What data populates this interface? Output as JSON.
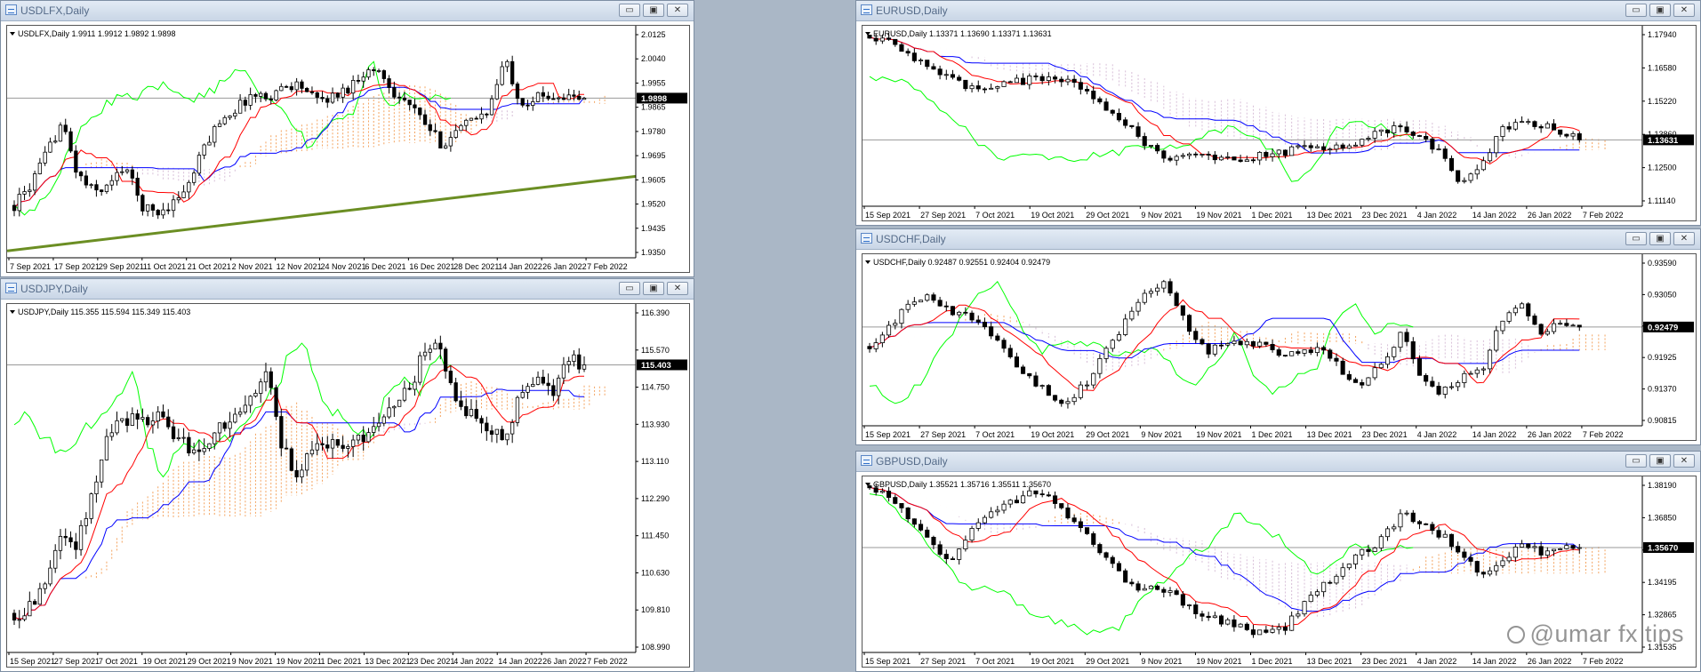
{
  "colors": {
    "candle_up": "#ffffff",
    "candle_down": "#000000",
    "tenkan": "#ff0000",
    "kijun": "#0000ff",
    "chikou": "#00ff00",
    "kumo_bull": "#f4a460",
    "kumo_bear": "#d8bfd8",
    "trendline": "#6b8e23",
    "price_tag_bg": "#000000"
  },
  "window_buttons": {
    "minimize": "▭",
    "restore": "▣",
    "close": "✕"
  },
  "watermark": "@umar fx tips",
  "charts": [
    {
      "id": "usdlfx",
      "title": "USDLFX,Daily",
      "info": "USDLFX,Daily  1.9911 1.9912 1.9892 1.9898",
      "price_tag": "1.9898",
      "y_labels": [
        "2.0125",
        "2.0040",
        "1.9955",
        "1.9865",
        "1.9780",
        "1.9695",
        "1.9605",
        "1.9520",
        "1.9435",
        "1.9350"
      ],
      "x_labels": [
        "7 Sep 2021",
        "17 Sep 2021",
        "29 Sep 2021",
        "11 Oct 2021",
        "21 Oct 2021",
        "2 Nov 2021",
        "12 Nov 2021",
        "24 Nov 2021",
        "6 Dec 2021",
        "16 Dec 2021",
        "28 Dec 2021",
        "14 Jan 2022",
        "26 Jan 2022",
        "7 Feb 2022"
      ],
      "trendline": true,
      "chart_data": {
        "type": "candlestick",
        "ylim": [
          1.932,
          2.016
        ],
        "last_price": 1.9898,
        "anchors": [
          1.951,
          1.958,
          1.969,
          1.981,
          1.962,
          1.956,
          1.958,
          1.966,
          1.951,
          1.948,
          1.952,
          1.958,
          1.972,
          1.982,
          1.986,
          1.991,
          1.99,
          1.994,
          1.995,
          1.989,
          1.99,
          1.993,
          1.999,
          2.0,
          1.992,
          1.987,
          1.98,
          1.973,
          1.978,
          1.982,
          1.986,
          2.004,
          1.988,
          1.99,
          1.991,
          1.99,
          1.9898
        ]
      }
    },
    {
      "id": "usdjpy",
      "title": "USDJPY,Daily",
      "info": "USDJPY,Daily  115.355 115.594 115.349 115.403",
      "price_tag": "115.403",
      "y_labels": [
        "116.390",
        "115.570",
        "114.750",
        "113.930",
        "113.110",
        "112.290",
        "111.450",
        "110.630",
        "109.810",
        "108.990"
      ],
      "x_labels": [
        "15 Sep 2021",
        "27 Sep 2021",
        "7 Oct 2021",
        "19 Oct 2021",
        "29 Oct 2021",
        "9 Nov 2021",
        "19 Nov 2021",
        "1 Dec 2021",
        "13 Dec 2021",
        "23 Dec 2021",
        "4 Jan 2022",
        "14 Jan 2022",
        "26 Jan 2022",
        "7 Feb 2022"
      ],
      "trendline": false,
      "chart_data": {
        "type": "candlestick",
        "ylim": [
          108.8,
          116.8
        ],
        "last_price": 115.403,
        "anchors": [
          109.7,
          109.8,
          110.5,
          111.4,
          111.3,
          112.6,
          113.9,
          114.2,
          114.0,
          114.2,
          113.8,
          113.5,
          113.5,
          114.0,
          114.2,
          114.7,
          115.2,
          113.4,
          112.9,
          113.5,
          113.7,
          113.5,
          113.7,
          114.1,
          114.6,
          114.8,
          115.9,
          115.6,
          114.6,
          114.2,
          114.0,
          113.8,
          114.7,
          115.1,
          114.8,
          115.5,
          115.403
        ]
      }
    },
    {
      "id": "eurusd",
      "title": "EURUSD,Daily",
      "info": "EURUSD,Daily  1.13371 1.13690 1.13371 1.13631",
      "price_tag": "1.13631",
      "y_labels": [
        "1.17940",
        "1.16580",
        "1.15220",
        "1.13860",
        "1.12500",
        "1.11140"
      ],
      "x_labels": [
        "15 Sep 2021",
        "27 Sep 2021",
        "7 Oct 2021",
        "19 Oct 2021",
        "29 Oct 2021",
        "9 Nov 2021",
        "19 Nov 2021",
        "1 Dec 2021",
        "13 Dec 2021",
        "23 Dec 2021",
        "4 Jan 2022",
        "14 Jan 2022",
        "26 Jan 2022",
        "7 Feb 2022"
      ],
      "trendline": false,
      "chart_data": {
        "type": "candlestick",
        "ylim": [
          1.108,
          1.185
        ],
        "last_price": 1.13631,
        "anchors": [
          1.181,
          1.178,
          1.173,
          1.168,
          1.162,
          1.159,
          1.157,
          1.16,
          1.162,
          1.163,
          1.161,
          1.157,
          1.15,
          1.143,
          1.134,
          1.128,
          1.131,
          1.13,
          1.129,
          1.127,
          1.13,
          1.131,
          1.134,
          1.133,
          1.134,
          1.136,
          1.14,
          1.141,
          1.137,
          1.13,
          1.118,
          1.125,
          1.14,
          1.145,
          1.143,
          1.14,
          1.13631
        ]
      }
    },
    {
      "id": "usdchf",
      "title": "USDCHF,Daily",
      "info": "USDCHF,Daily  0.92487 0.92551 0.92404 0.92479",
      "price_tag": "0.92479",
      "y_labels": [
        "0.93590",
        "0.93050",
        "0.92479",
        "0.91925",
        "0.91370",
        "0.90815"
      ],
      "x_labels": [
        "15 Sep 2021",
        "27 Sep 2021",
        "7 Oct 2021",
        "19 Oct 2021",
        "29 Oct 2021",
        "9 Nov 2021",
        "19 Nov 2021",
        "1 Dec 2021",
        "13 Dec 2021",
        "23 Dec 2021",
        "4 Jan 2022",
        "14 Jan 2022",
        "26 Jan 2022",
        "7 Feb 2022"
      ],
      "trendline": false,
      "chart_data": {
        "type": "candlestick",
        "ylim": [
          0.9055,
          0.939
        ],
        "last_price": 0.92479,
        "anchors": [
          0.921,
          0.925,
          0.929,
          0.931,
          0.928,
          0.927,
          0.924,
          0.92,
          0.915,
          0.912,
          0.91,
          0.914,
          0.92,
          0.926,
          0.931,
          0.934,
          0.926,
          0.92,
          0.921,
          0.922,
          0.921,
          0.919,
          0.92,
          0.921,
          0.916,
          0.913,
          0.918,
          0.924,
          0.915,
          0.912,
          0.915,
          0.916,
          0.926,
          0.929,
          0.924,
          0.925,
          0.92479
        ]
      }
    },
    {
      "id": "gbpusd",
      "title": "GBPUSD,Daily",
      "info": "GBPUSD,Daily  1.35521 1.35716 1.35511 1.35670",
      "price_tag": "1.35670",
      "y_labels": [
        "1.38190",
        "1.36850",
        "1.35670",
        "1.34195",
        "1.32865",
        "1.31535"
      ],
      "x_labels": [
        "15 Sep 2021",
        "27 Sep 2021",
        "7 Oct 2021",
        "19 Oct 2021",
        "29 Oct 2021",
        "9 Nov 2021",
        "19 Nov 2021",
        "1 Dec 2021",
        "13 Dec 2021",
        "23 Dec 2021",
        "4 Jan 2022",
        "14 Jan 2022",
        "26 Jan 2022",
        "7 Feb 2022"
      ],
      "trendline": false,
      "chart_data": {
        "type": "candlestick",
        "ylim": [
          1.312,
          1.387
        ],
        "last_price": 1.3567,
        "anchors": [
          1.383,
          1.378,
          1.37,
          1.362,
          1.35,
          1.362,
          1.37,
          1.375,
          1.38,
          1.378,
          1.371,
          1.363,
          1.352,
          1.342,
          1.339,
          1.338,
          1.333,
          1.327,
          1.325,
          1.322,
          1.32,
          1.322,
          1.332,
          1.34,
          1.349,
          1.355,
          1.36,
          1.372,
          1.366,
          1.362,
          1.355,
          1.345,
          1.35,
          1.358,
          1.355,
          1.356,
          1.3567
        ]
      }
    }
  ]
}
